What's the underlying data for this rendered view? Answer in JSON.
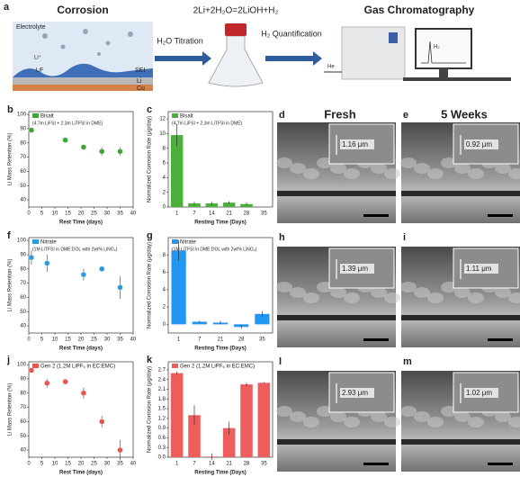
{
  "schematic": {
    "panel": "a",
    "title_left": "Corrosion",
    "electrolyte": "Electrolyte",
    "li_ion": "Li⁺",
    "lif": "LiF",
    "sei": "SEI",
    "li": "Li",
    "cu": "Cu",
    "reaction": "2Li+2H₂O=2LiOH+H₂",
    "step1": "H₂O Titration",
    "step2": "H₂ Quantification",
    "title_right": "Gas Chromatography",
    "he": "He",
    "h2": "H₂"
  },
  "sem": {
    "headers": [
      "Fresh",
      "5 Weeks"
    ],
    "panels": [
      {
        "label": "d",
        "measure": "1.16 μm"
      },
      {
        "label": "e",
        "measure": "0.92 μm"
      },
      {
        "label": "h",
        "measure": "1.39 μm"
      },
      {
        "label": "i",
        "measure": "1.11 μm"
      },
      {
        "label": "l",
        "measure": "2.93 μm"
      },
      {
        "label": "m",
        "measure": "1.02 μm"
      }
    ]
  },
  "chart_data": [
    {
      "type": "scatter",
      "panel": "b",
      "xlabel": "Rest Time (days)",
      "ylabel": "Li Mass Retention (%)",
      "xlim": [
        0,
        40
      ],
      "xticks": [
        0,
        5,
        10,
        15,
        20,
        25,
        30,
        35,
        40
      ],
      "ylim": [
        35,
        102
      ],
      "yticks": [
        40,
        50,
        60,
        70,
        80,
        90,
        100
      ],
      "x": [
        1,
        14,
        21,
        28,
        35
      ],
      "annotation": "(4.7m LiFSI + 2.3m LiTFSI in DME)",
      "series": [
        {
          "name": "Bisalt",
          "color": "#3fa535",
          "values": [
            89,
            82,
            77,
            74,
            74
          ],
          "errors": [
            1,
            1,
            1,
            3,
            3
          ]
        }
      ]
    },
    {
      "type": "bar",
      "panel": "c",
      "xlabel": "Resting Time (Days)",
      "ylabel": "Normalized Corrosion Rate (μg/day)",
      "ylim": [
        0,
        13
      ],
      "yticks": [
        0,
        2,
        4,
        6,
        8,
        10,
        12
      ],
      "categories": [
        "1",
        "7",
        "14",
        "21",
        "28",
        "35"
      ],
      "annotation": "(4.7m LiFSI + 2.3m LiTFSI in DME)",
      "series": [
        {
          "name": "Bisalt",
          "color": "#4caf3c",
          "values": [
            9.8,
            0.5,
            0.5,
            0.6,
            0.4,
            0
          ],
          "errors": [
            1.5,
            0.2,
            0.2,
            0.2,
            0.2,
            0
          ]
        }
      ]
    },
    {
      "type": "scatter",
      "panel": "f",
      "xlabel": "Rest Time (days)",
      "ylabel": "Li Mass Retention (%)",
      "xlim": [
        0,
        40
      ],
      "xticks": [
        0,
        5,
        10,
        15,
        20,
        25,
        30,
        35,
        40
      ],
      "ylim": [
        35,
        102
      ],
      "yticks": [
        40,
        50,
        60,
        70,
        80,
        90,
        100
      ],
      "x": [
        1,
        7,
        21,
        28,
        35
      ],
      "annotation": "(1M LiTFSI in DME:DOL with 2wt% LiNO₃)",
      "series": [
        {
          "name": "Nitrate",
          "color": "#2b9be0",
          "values": [
            88,
            84,
            76,
            80,
            67
          ],
          "errors": [
            5,
            6,
            4,
            2,
            8
          ]
        }
      ]
    },
    {
      "type": "bar",
      "panel": "g",
      "xlabel": "Resting Time (Days)",
      "ylabel": "Normalized Corrosion Rate (μg/day)",
      "ylim": [
        -1,
        10
      ],
      "yticks": [
        0,
        2,
        4,
        6,
        8
      ],
      "categories": [
        "1",
        "7",
        "21",
        "28",
        "35"
      ],
      "annotation": "(1M LiTFSI in DME:DOL with 2wt% LiNO₃)",
      "series": [
        {
          "name": "Nitrate",
          "color": "#2196f3",
          "values": [
            8.5,
            0.3,
            0.2,
            -0.3,
            1.2
          ],
          "errors": [
            1.2,
            0.1,
            0.2,
            0.2,
            0.3
          ]
        }
      ]
    },
    {
      "type": "scatter",
      "panel": "j",
      "xlabel": "Rest Time (days)",
      "ylabel": "Li Mass Retention (%)",
      "xlim": [
        0,
        40
      ],
      "xticks": [
        0,
        5,
        10,
        15,
        20,
        25,
        30,
        35,
        40
      ],
      "ylim": [
        35,
        102
      ],
      "yticks": [
        40,
        50,
        60,
        70,
        80,
        90,
        100
      ],
      "x": [
        1,
        7,
        14,
        21,
        28,
        35
      ],
      "series": [
        {
          "name": "Gen 2 (1.2M LiPF₆ in EC:EMC)",
          "color": "#e8554e",
          "values": [
            96,
            87,
            88,
            80,
            60,
            40
          ],
          "errors": [
            1,
            3,
            1,
            4,
            4,
            7
          ]
        }
      ]
    },
    {
      "type": "bar",
      "panel": "k",
      "xlabel": "Resting Time (Days)",
      "ylabel": "Normalized Corrosion Rate (μg/day)",
      "ylim": [
        0,
        2.95
      ],
      "yticks": [
        {
          "value": 0,
          "label": "0.0"
        },
        0.3,
        0.6,
        0.9,
        1.2,
        1.5,
        1.8,
        2.1,
        2.4,
        2.7
      ],
      "categories": [
        "1",
        "7",
        "14",
        "21",
        "28",
        "35"
      ],
      "series": [
        {
          "name": "Gen 2 (1.2M LiPF₆ in EC:EMC)",
          "color": "#ee5c5c",
          "values": [
            2.6,
            1.3,
            0.02,
            0.9,
            2.25,
            2.3
          ],
          "errors": [
            0.05,
            0.3,
            0.1,
            0.2,
            0.05,
            0.02
          ]
        }
      ]
    }
  ]
}
